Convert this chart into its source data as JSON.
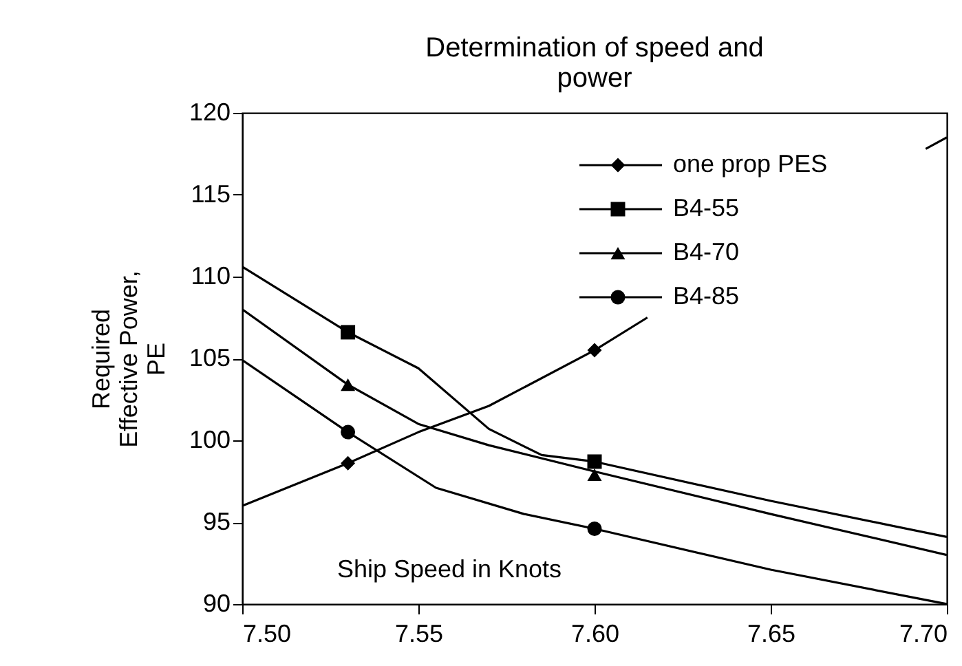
{
  "chart_data": {
    "type": "line",
    "title": "Determination of speed and\npower",
    "xlabel": "Ship Speed in Knots",
    "ylabel": "Required\nEffective Power,\nPE",
    "xlim": [
      7.5,
      7.7
    ],
    "xticks": [
      {
        "value": 7.5,
        "label": "7.50"
      },
      {
        "value": 7.55,
        "label": "7.55"
      },
      {
        "value": 7.6,
        "label": "7.60"
      },
      {
        "value": 7.65,
        "label": "7.65"
      },
      {
        "value": 7.7,
        "label": "7.70"
      }
    ],
    "ylim": [
      90,
      120
    ],
    "yticks": [
      90,
      95,
      100,
      105,
      110,
      115,
      120
    ],
    "grid": false,
    "legend": "top right",
    "series": [
      {
        "marker": "none",
        "color": "#000000",
        "x": [
          7.5,
          7.53,
          7.55,
          7.57,
          7.6,
          7.615,
          7.65,
          7.694,
          7.7
        ],
        "values": [
          96.0,
          98.6,
          100.5,
          102.1,
          105.5,
          107.5,
          null,
          117.8,
          118.5
        ]
      },
      {
        "marker": "none",
        "color": "#000000",
        "x": [
          7.5,
          7.53,
          7.55,
          7.57,
          7.585,
          7.6,
          7.65,
          7.7
        ],
        "values": [
          110.6,
          106.6,
          104.4,
          100.7,
          99.1,
          98.7,
          96.3,
          94.1
        ]
      },
      {
        "marker": "none",
        "color": "#000000",
        "x": [
          7.5,
          7.53,
          7.55,
          7.57,
          7.6,
          7.65,
          7.7
        ],
        "values": [
          108.0,
          103.4,
          101.0,
          99.7,
          98.1,
          95.5,
          93.0
        ]
      },
      {
        "marker": "none",
        "color": "#000000",
        "x": [
          7.5,
          7.53,
          7.555,
          7.58,
          7.6,
          7.65,
          7.7
        ],
        "values": [
          104.9,
          100.5,
          97.1,
          95.5,
          94.6,
          92.1,
          90.0
        ]
      },
      {
        "type": "scatter",
        "name": "one prop PES",
        "marker": "diamond",
        "color": "#000000",
        "x": [
          7.53,
          7.6
        ],
        "values": [
          98.6,
          105.5
        ]
      },
      {
        "type": "scatter",
        "name": "B4-55",
        "marker": "square",
        "color": "#000000",
        "x": [
          7.53,
          7.6
        ],
        "values": [
          106.6,
          98.7
        ]
      },
      {
        "type": "scatter",
        "name": "B4-70",
        "marker": "triangle",
        "color": "#000000",
        "x": [
          7.53,
          7.6
        ],
        "values": [
          103.4,
          97.9
        ]
      },
      {
        "type": "scatter",
        "name": "B4-85",
        "marker": "circle",
        "color": "#000000",
        "x": [
          7.53,
          7.6
        ],
        "values": [
          100.5,
          94.6
        ]
      }
    ]
  }
}
